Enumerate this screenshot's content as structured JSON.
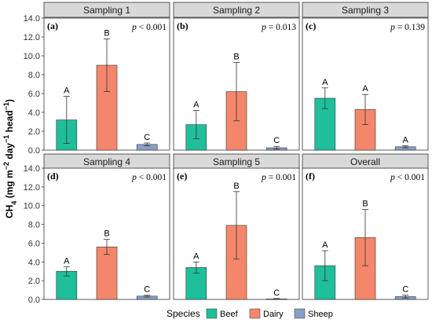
{
  "chart_data": {
    "type": "bar",
    "ylabel": "CH4 (mg m−2 day−1 head−1)",
    "ylim": [
      0,
      14
    ],
    "yticks": [
      "0.0",
      "2.0",
      "4.0",
      "6.0",
      "8.0",
      "10.0",
      "12.0",
      "14.0"
    ],
    "grid": false,
    "legend": {
      "title": "Species",
      "position": "bottom",
      "items": [
        {
          "name": "Beef",
          "color": "#1fbf9b"
        },
        {
          "name": "Dairy",
          "color": "#f4876b"
        },
        {
          "name": "Sheep",
          "color": "#8a9ec9"
        }
      ]
    },
    "categories": [
      "Beef",
      "Dairy",
      "Sheep"
    ],
    "panels": [
      {
        "title": "Sampling 1",
        "label": "(a)",
        "p_prefix": "p",
        "p_rel": " < 0.001",
        "values": [
          3.2,
          9.0,
          0.6
        ],
        "errors": [
          2.5,
          2.8,
          0.15
        ],
        "letters": [
          "A",
          "B",
          "C"
        ]
      },
      {
        "title": "Sampling 2",
        "label": "(b)",
        "p_prefix": "p",
        "p_rel": " = 0.013",
        "values": [
          2.7,
          6.2,
          0.25
        ],
        "errors": [
          1.5,
          3.1,
          0.15
        ],
        "letters": [
          "A",
          "B",
          "C"
        ]
      },
      {
        "title": "Sampling 3",
        "label": "(c)",
        "p_prefix": "p",
        "p_rel": " = 0.139",
        "values": [
          5.5,
          4.3,
          0.35
        ],
        "errors": [
          1.1,
          1.6,
          0.1
        ],
        "letters": [
          "A",
          "A",
          "A"
        ]
      },
      {
        "title": "Sampling 4",
        "label": "(d)",
        "p_prefix": "p",
        "p_rel": " < 0.001",
        "values": [
          3.0,
          5.6,
          0.35
        ],
        "errors": [
          0.5,
          0.8,
          0.1
        ],
        "letters": [
          "A",
          "B",
          "C"
        ]
      },
      {
        "title": "Sampling 5",
        "label": "(e)",
        "p_prefix": "p",
        "p_rel": " = 0.001",
        "values": [
          3.4,
          7.9,
          0.05
        ],
        "errors": [
          0.6,
          3.6,
          0.05
        ],
        "letters": [
          "A",
          "B",
          "C"
        ]
      },
      {
        "title": "Overall",
        "label": "(f)",
        "p_prefix": "p",
        "p_rel": " < 0.001",
        "values": [
          3.6,
          6.6,
          0.3
        ],
        "errors": [
          1.6,
          3.0,
          0.15
        ],
        "letters": [
          "A",
          "B",
          "C"
        ]
      }
    ]
  }
}
